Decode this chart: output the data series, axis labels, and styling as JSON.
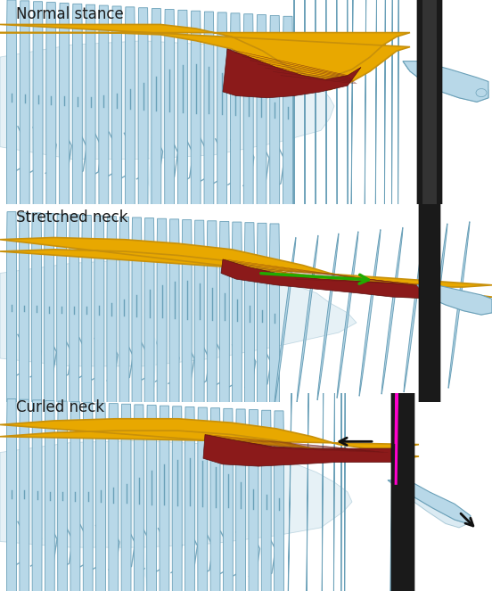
{
  "title1": "Normal stance",
  "title2": "Stretched neck",
  "title3": "Curled neck",
  "bg_color": "#ffffff",
  "ligament_color": "#E8A800",
  "ligament_outline": "#C8900A",
  "muscle_color_dark": "#8B1A1A",
  "muscle_color_mid": "#A83030",
  "muscle_color_light": "#C04040",
  "bone_fill": "#B8D8E8",
  "bone_outline": "#6AA0B8",
  "bone_light": "#D8EEF8",
  "green_color": "#22AA00",
  "magenta_color": "#FF00CC",
  "black_color": "#111111",
  "text_color": "#1a1a1a",
  "font_size": 12,
  "leg_color": "#A0C4D8",
  "leg_outline": "#6090A8"
}
